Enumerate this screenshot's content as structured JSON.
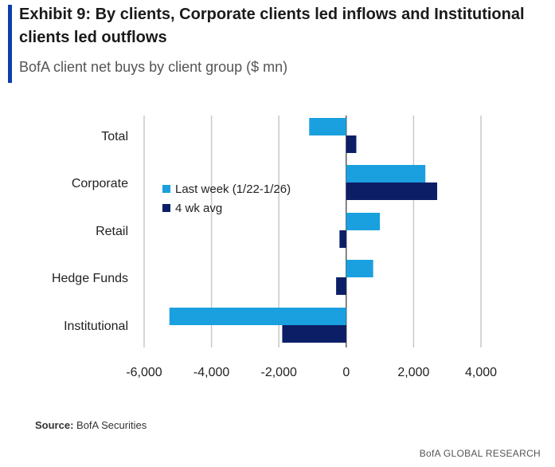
{
  "title": "Exhibit 9: By clients, Corporate clients led inflows and Institutional clients led outflows",
  "subtitle": "BofA client net buys by client group ($ mn)",
  "source_label": "Source:",
  "source_text": "BofA Securities",
  "brand": "BofA GLOBAL RESEARCH",
  "chart_data": {
    "type": "bar",
    "orientation": "horizontal",
    "categories": [
      "Total",
      "Corporate",
      "Retail",
      "Hedge Funds",
      "Institutional"
    ],
    "series": [
      {
        "name": "Last week (1/22-1/26)",
        "color": "#1aa0df",
        "values": [
          -1100,
          2350,
          1000,
          800,
          -5250
        ]
      },
      {
        "name": "4 wk avg",
        "color": "#0c1f66",
        "values": [
          300,
          2700,
          -200,
          -300,
          -1900
        ]
      }
    ],
    "xlim": [
      -6000,
      4000
    ],
    "xticks": [
      -6000,
      -4000,
      -2000,
      0,
      2000,
      4000
    ],
    "xtick_labels": [
      "-6,000",
      "-4,000",
      "-2,000",
      "0",
      "2,000",
      "4,000"
    ],
    "grid": "vertical",
    "legend": "center"
  }
}
